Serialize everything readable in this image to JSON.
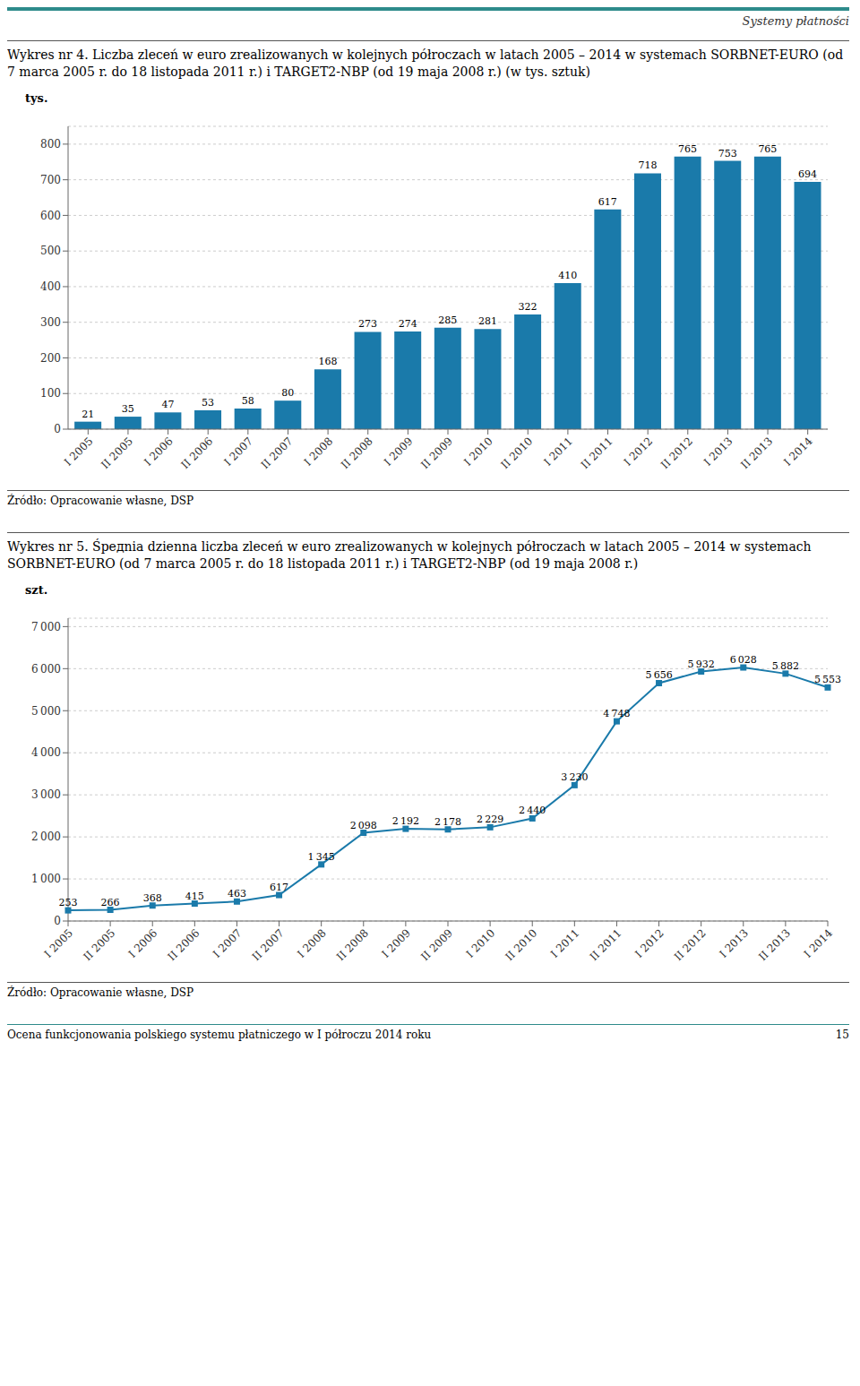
{
  "page_title": "Systemy płatności",
  "footer": [
    "Ocena funkcjonowania polskiego systemu płatniczego w I półroczu 2014 roku",
    "15"
  ],
  "chart_data": [
    {
      "type": "bar",
      "title": "Wykres nr 4. Liczba zleceń w euro zrealizowanych w kolejnych półroczach w latach 2005 – 2014 w systemach SORBNET-EURO (od 7 marca 2005 r. do 18 listopada 2011 r.) i TARGET2-NBP (od 19 maja 2008 r.) (w tys. sztuk)",
      "ylabel": "tys.",
      "annotations": [
        "Źródło: Opracowanie własne, DSP"
      ],
      "categories": [
        "I 2005",
        "II 2005",
        "I 2006",
        "II 2006",
        "I 2007",
        "II 2007",
        "I 2008",
        "II 2008",
        "I 2009",
        "II 2009",
        "I 2010",
        "II 2010",
        "I 2011",
        "II 2011",
        "I 2012",
        "II 2012",
        "I 2013",
        "II 2013",
        "I 2014"
      ],
      "values": [
        21,
        35,
        47,
        53,
        58,
        80,
        168,
        273,
        274,
        285,
        281,
        322,
        410,
        617,
        718,
        765,
        753,
        765,
        694
      ],
      "color": "#1a7aaa",
      "ylim": [
        0,
        850
      ],
      "yticks": [
        0,
        100,
        200,
        300,
        400,
        500,
        600,
        700,
        800
      ],
      "grid": true,
      "data_labels": true
    },
    {
      "type": "line",
      "title": "Wykres nr 5. Śредnia dzienna liczba zleceń w euro zrealizowanych w kolejnych półroczach w latach 2005 – 2014 w systemach SORBNET-EURO (od 7 marca 2005 r. do 18 listopada 2011 r.) i TARGET2-NBP (od 19 maja 2008 r.)",
      "ylabel": "szt.",
      "annotations": [
        "Źródło: Opracowanie własne, DSP"
      ],
      "categories": [
        "I 2005",
        "II 2005",
        "I 2006",
        "II 2006",
        "I 2007",
        "II 2007",
        "I 2008",
        "II 2008",
        "I 2009",
        "II 2009",
        "I 2010",
        "II 2010",
        "I 2011",
        "II 2011",
        "I 2012",
        "II 2012",
        "I 2013",
        "II 2013",
        "I 2014"
      ],
      "values": [
        253,
        266,
        368,
        415,
        463,
        617,
        1345,
        2098,
        2192,
        2178,
        2229,
        2440,
        3230,
        4748,
        5656,
        5932,
        6028,
        5882,
        5553
      ],
      "value_labels": [
        "253",
        "266",
        "368",
        "415",
        "463",
        "617",
        "1 345",
        "2 098",
        "2 192",
        "2 178",
        "2 229",
        "2 440",
        "3 230",
        "4 748",
        "5 656",
        "5 932",
        "6 028",
        "5 882",
        "5 553"
      ],
      "color": "#1a7aaa",
      "marker": "square",
      "ylim": [
        0,
        7200
      ],
      "yticks": [
        0,
        {
          "value": 1000,
          "label": "1 000"
        },
        {
          "value": 2000,
          "label": "2 000"
        },
        {
          "value": 3000,
          "label": "3 000"
        },
        {
          "value": 4000,
          "label": "4 000"
        },
        {
          "value": 5000,
          "label": "5 000"
        },
        {
          "value": 6000,
          "label": "6 000"
        },
        {
          "value": 7000,
          "label": "7 000"
        }
      ],
      "grid": true,
      "data_labels": true
    }
  ]
}
